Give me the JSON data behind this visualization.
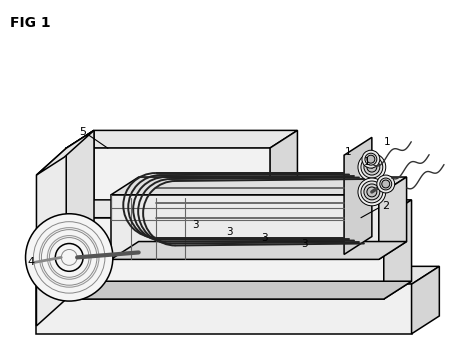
{
  "title": "FIG 1",
  "bg": "#ffffff",
  "lc": "#000000",
  "lw": 1.1,
  "fig_w": 4.49,
  "fig_h": 3.62,
  "dpi": 100,
  "gray_top": "#e8e8e8",
  "gray_front": "#f2f2f2",
  "gray_side": "#d8d8d8",
  "gray_dark": "#c8c8c8",
  "gray_light": "#f8f8f8"
}
